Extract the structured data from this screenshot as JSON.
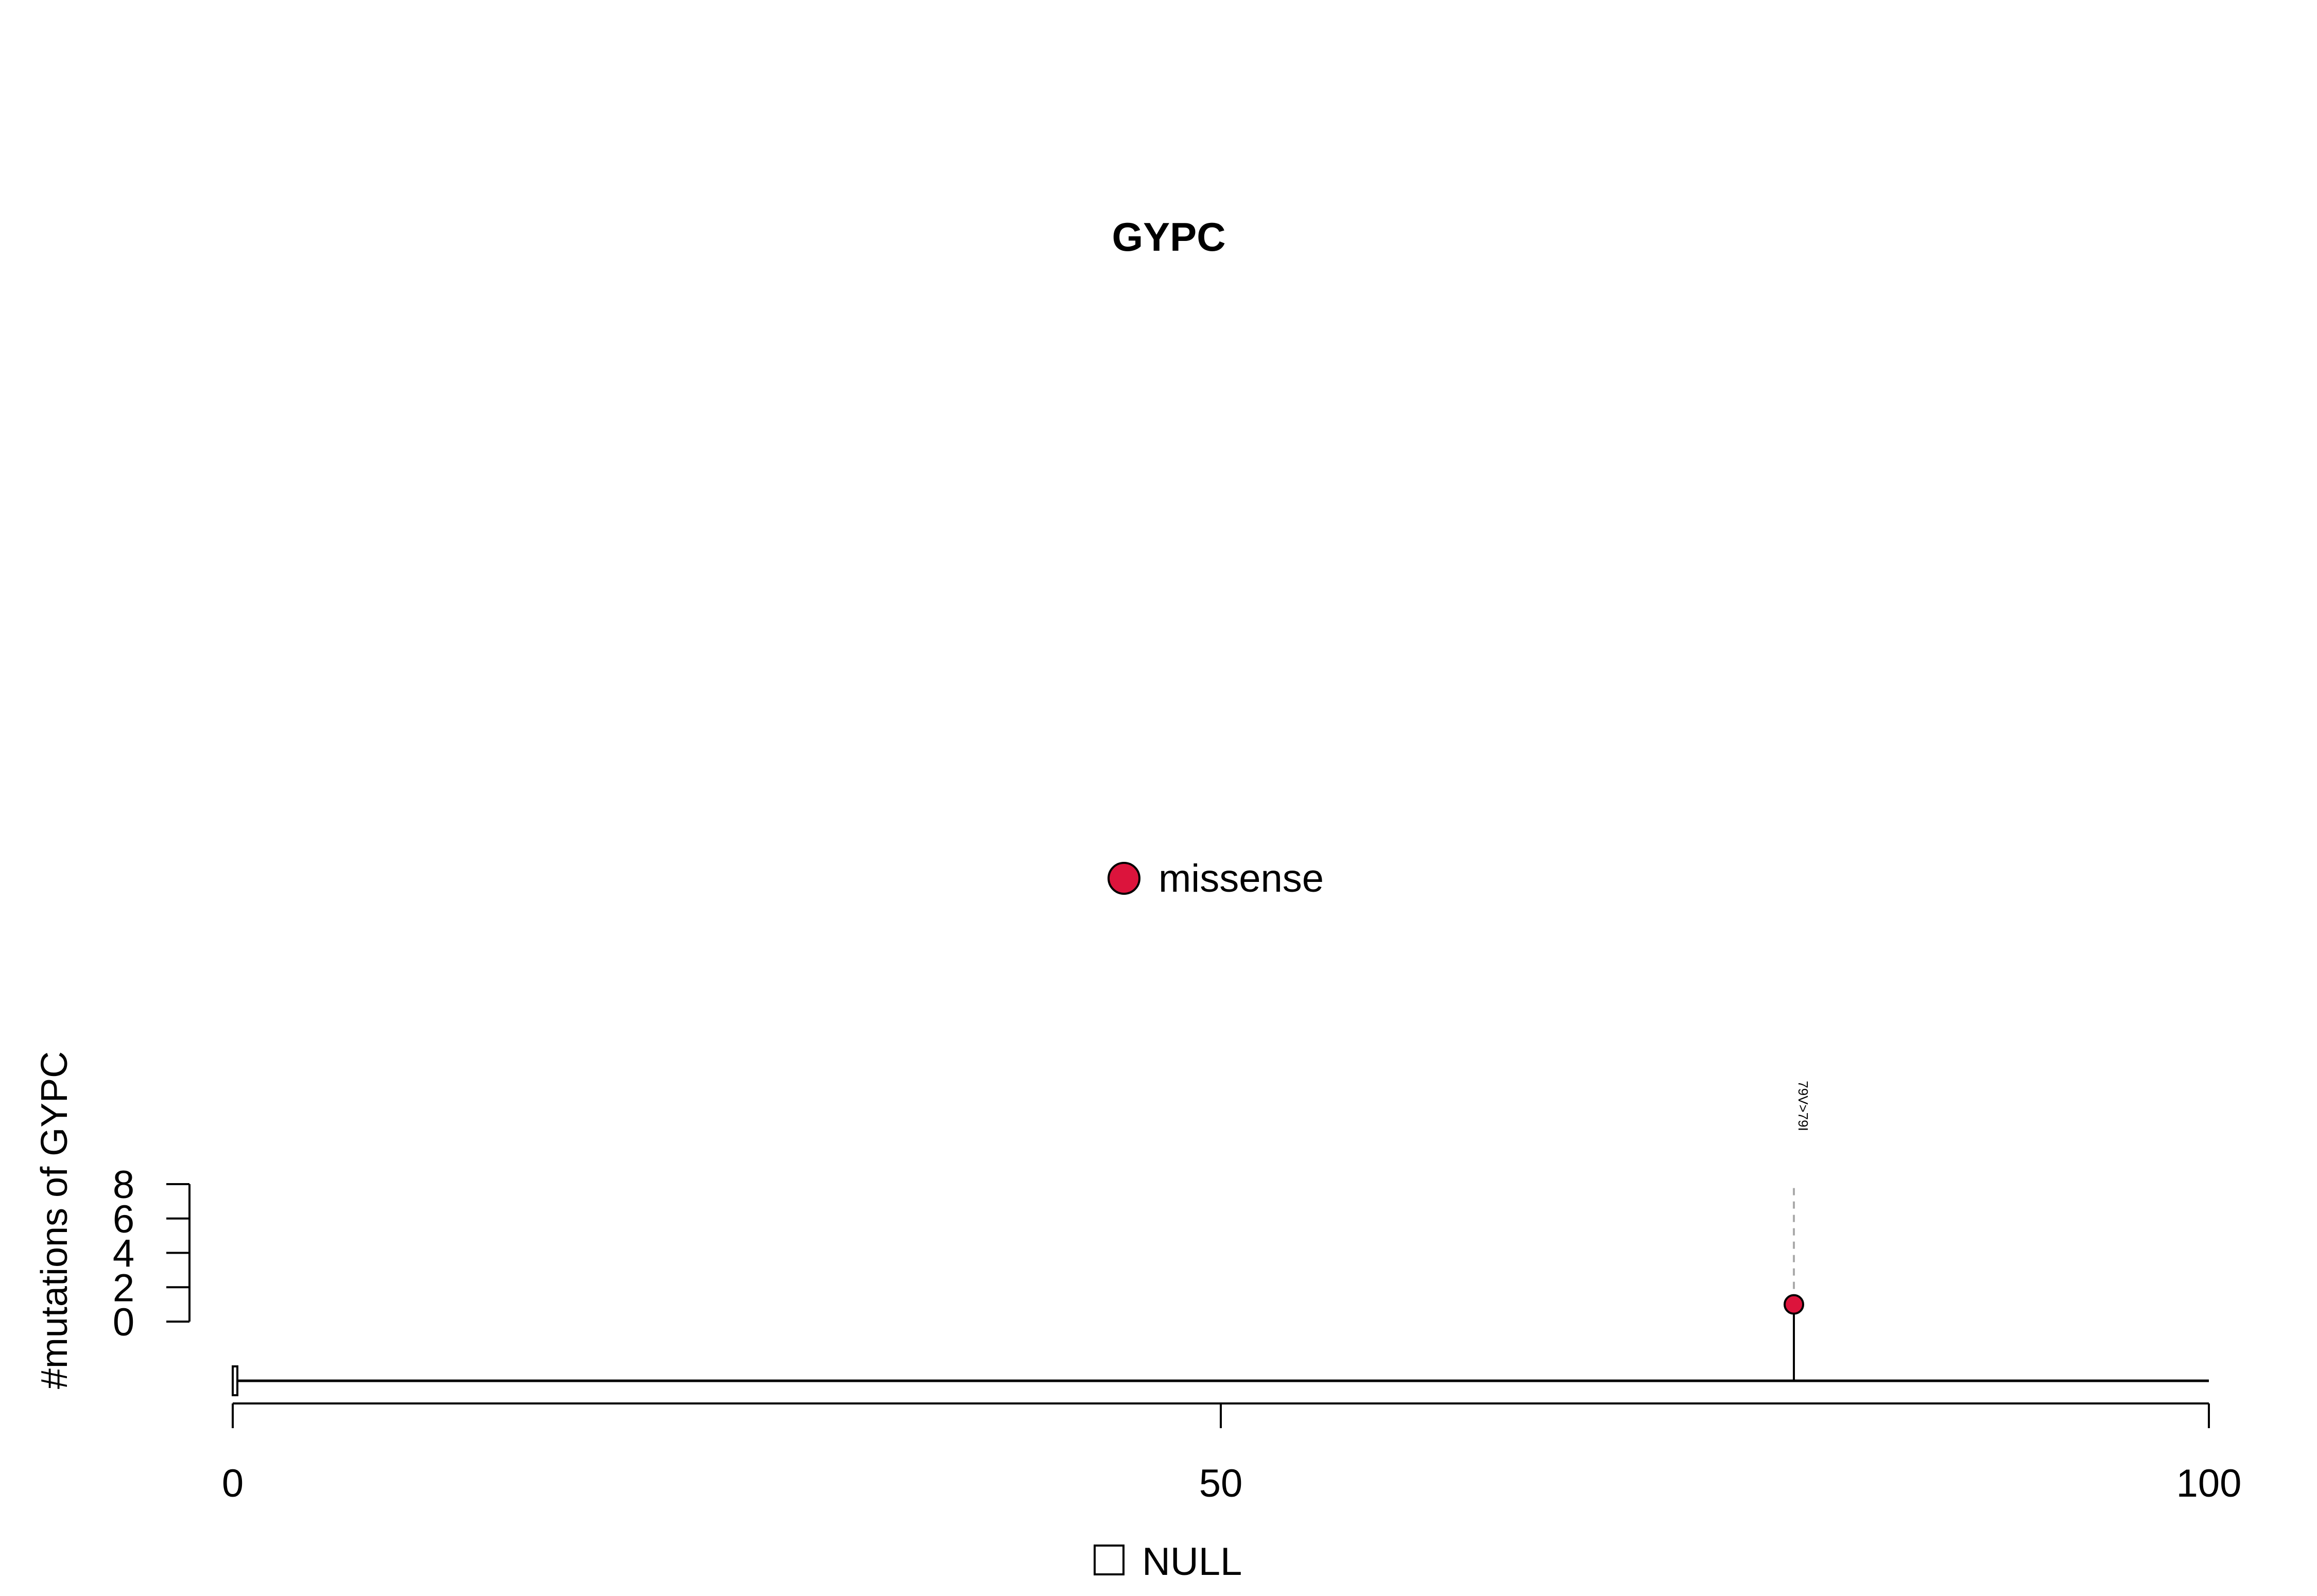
{
  "chart_data": {
    "type": "lollipop",
    "title": "GYPC",
    "ylabel": "#mutations of GYPC",
    "xlabel": "",
    "x_axis": {
      "min": 0,
      "max": 100,
      "ticks": [
        0,
        50,
        100
      ],
      "tick_labels": [
        "0",
        "50",
        "100"
      ]
    },
    "y_axis": {
      "min": 0,
      "max": 8,
      "ticks": [
        0,
        2,
        4,
        6,
        8
      ],
      "tick_labels": [
        "0",
        "2",
        "4",
        "6",
        "8"
      ]
    },
    "protein_length": 100,
    "domains": [
      {
        "name": "NULL",
        "start": 0,
        "end": 0.2,
        "color": "#ffffff"
      }
    ],
    "domain_legend": [
      {
        "label": "NULL",
        "color": "#ffffff"
      }
    ],
    "mutation_legend": [
      {
        "label": "missense",
        "color": "#dc143c"
      }
    ],
    "mutations": [
      {
        "position": 79,
        "count": 1,
        "type": "missense",
        "label": "79V>79I",
        "color": "#dc143c"
      }
    ]
  }
}
